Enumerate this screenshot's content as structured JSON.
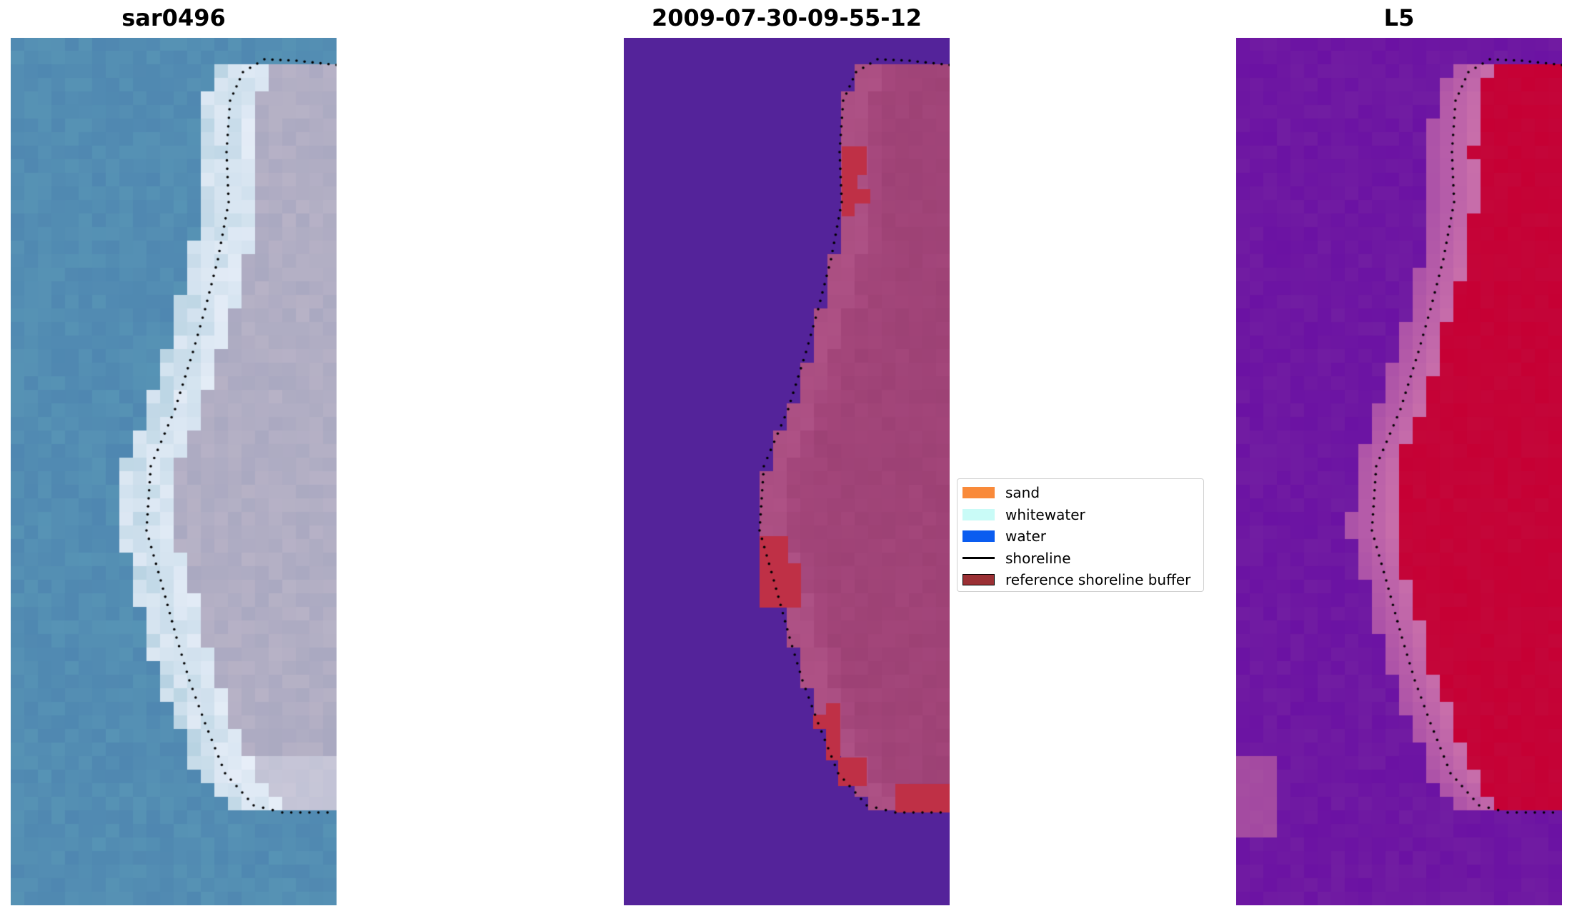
{
  "panels": [
    {
      "title": "sar0496"
    },
    {
      "title": "2009-07-30-09-55-12"
    },
    {
      "title": "L5"
    }
  ],
  "legend": {
    "items": [
      {
        "label": "sand",
        "color": "#f98a3a",
        "type": "patch"
      },
      {
        "label": "whitewater",
        "color": "#c9fbf7",
        "type": "patch"
      },
      {
        "label": "water",
        "color": "#0a5cf0",
        "type": "patch"
      },
      {
        "label": "shoreline",
        "color": "#000000",
        "type": "line"
      },
      {
        "label": "reference shoreline buffer",
        "color": "#9b3034",
        "type": "patch"
      }
    ]
  },
  "colors": {
    "rgb_water": "#4a7fae",
    "rgb_land": "#b7b2c6",
    "class_water": "#54239a",
    "class_land": "#a7497e",
    "class_buffer": "#bf3046",
    "index_low": "#6b12a3",
    "index_high": "#c60034"
  }
}
